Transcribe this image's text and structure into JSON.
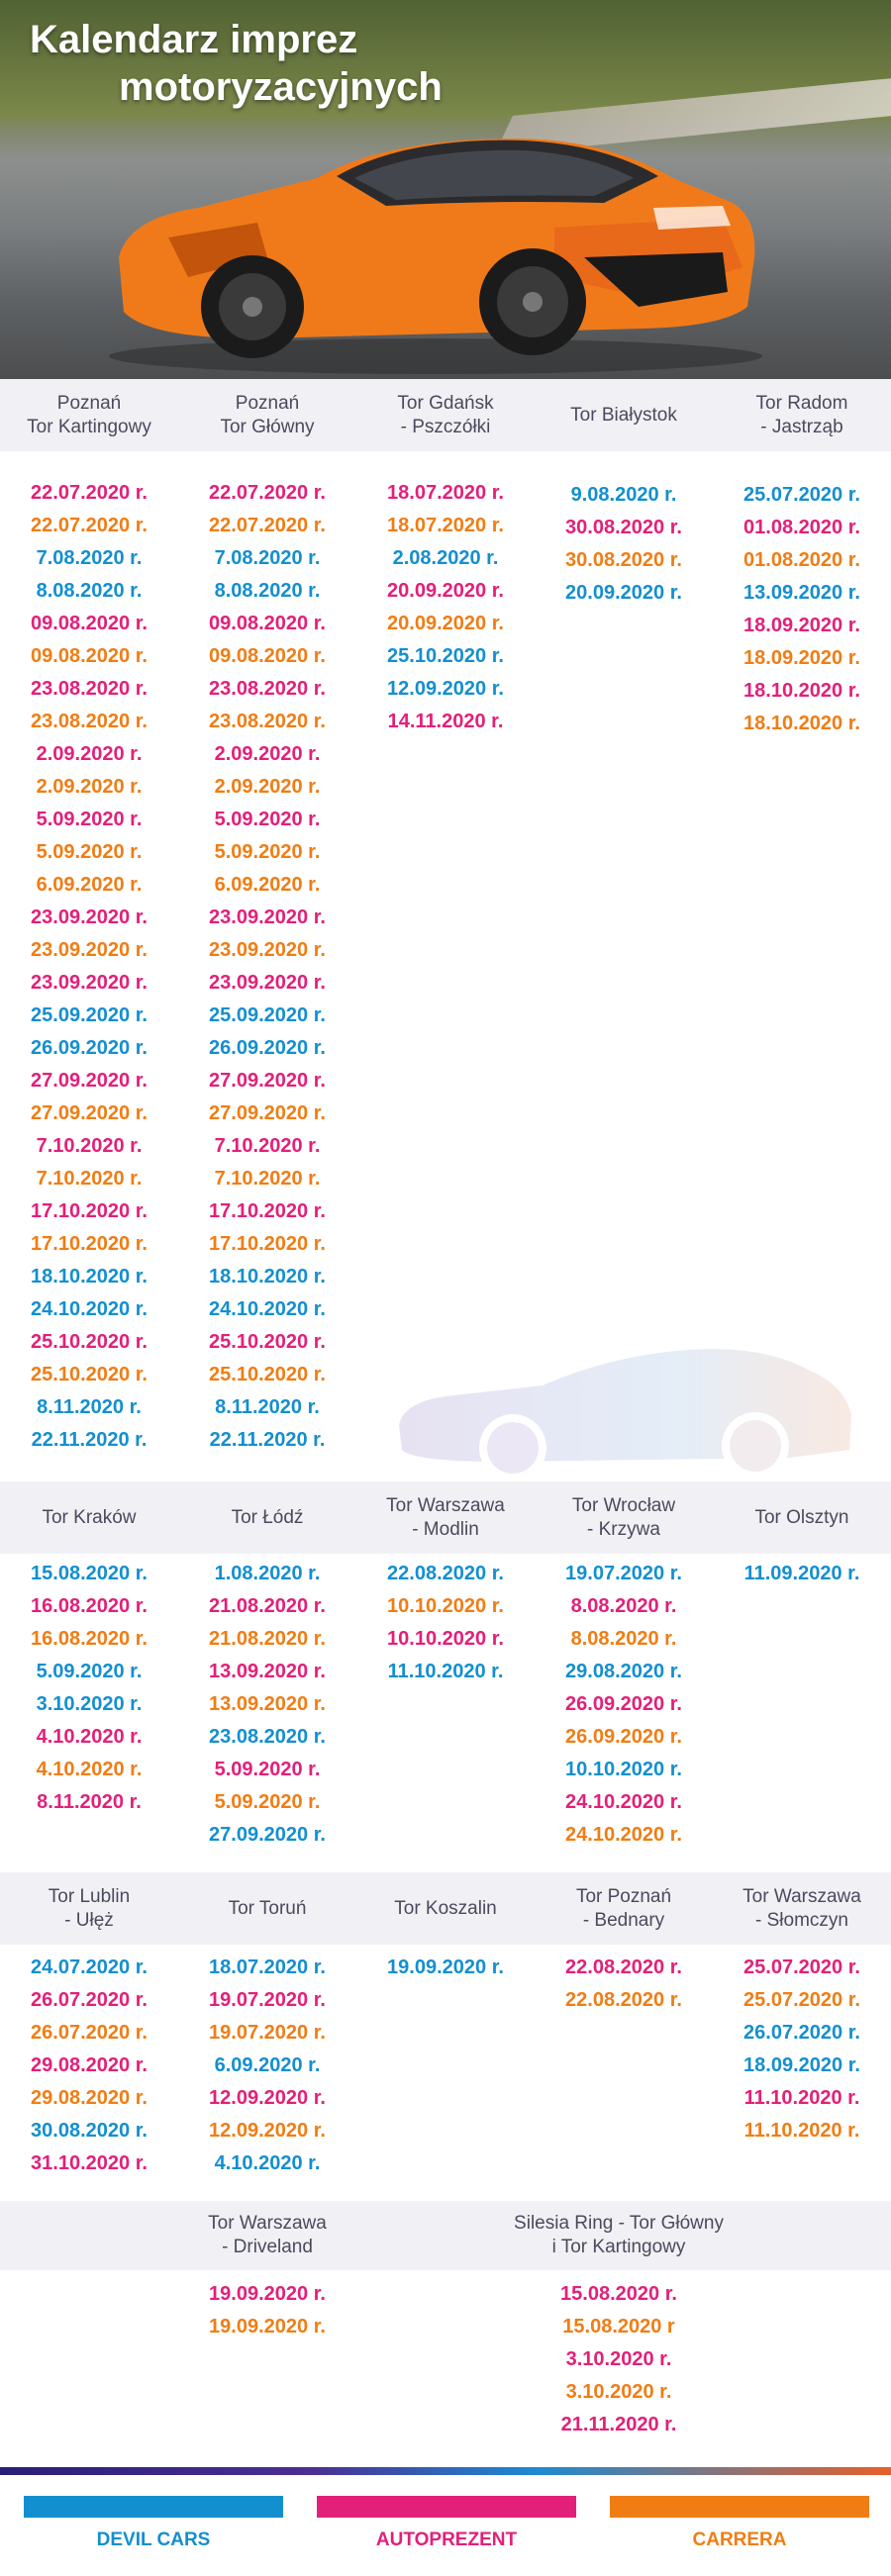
{
  "hero": {
    "title_line1": "Kalendarz imprez",
    "title_line2": "motoryzacyjnych"
  },
  "colors": {
    "devil": "#138fd0",
    "autoprezent": "#e2207a",
    "carrera": "#f07d14",
    "header_bg": "#f1f0f4",
    "header_text": "#4a4a5e"
  },
  "sections": [
    {
      "columns": [
        {
          "header": "Poznań\nTor Kartingowy",
          "dates": [
            {
              "t": "22.07.2020 r.",
              "c": "p"
            },
            {
              "t": "22.07.2020 r.",
              "c": "o"
            },
            {
              "t": "7.08.2020 r.",
              "c": "b"
            },
            {
              "t": "8.08.2020 r.",
              "c": "b"
            },
            {
              "t": "09.08.2020 r.",
              "c": "p"
            },
            {
              "t": "09.08.2020 r.",
              "c": "o"
            },
            {
              "t": "23.08.2020 r.",
              "c": "p"
            },
            {
              "t": "23.08.2020 r.",
              "c": "o"
            },
            {
              "t": "2.09.2020 r.",
              "c": "p"
            },
            {
              "t": "2.09.2020 r.",
              "c": "o"
            },
            {
              "t": "5.09.2020 r.",
              "c": "p"
            },
            {
              "t": "5.09.2020 r.",
              "c": "o"
            },
            {
              "t": "6.09.2020 r.",
              "c": "o"
            },
            {
              "t": "23.09.2020 r.",
              "c": "p"
            },
            {
              "t": "23.09.2020 r.",
              "c": "o"
            },
            {
              "t": "23.09.2020 r.",
              "c": "p"
            },
            {
              "t": "25.09.2020 r.",
              "c": "b"
            },
            {
              "t": "26.09.2020 r.",
              "c": "b"
            },
            {
              "t": "27.09.2020 r.",
              "c": "p"
            },
            {
              "t": "27.09.2020 r.",
              "c": "o"
            },
            {
              "t": "7.10.2020 r.",
              "c": "p"
            },
            {
              "t": "7.10.2020 r.",
              "c": "o"
            },
            {
              "t": "17.10.2020 r.",
              "c": "p"
            },
            {
              "t": "17.10.2020 r.",
              "c": "o"
            },
            {
              "t": "18.10.2020 r.",
              "c": "b"
            },
            {
              "t": "24.10.2020 r.",
              "c": "b"
            },
            {
              "t": "25.10.2020 r.",
              "c": "p"
            },
            {
              "t": "25.10.2020 r.",
              "c": "o"
            },
            {
              "t": "8.11.2020 r.",
              "c": "b"
            },
            {
              "t": "22.11.2020 r.",
              "c": "b"
            }
          ]
        },
        {
          "header": "Poznań\nTor Główny",
          "dates": [
            {
              "t": "22.07.2020 r.",
              "c": "p"
            },
            {
              "t": "22.07.2020 r.",
              "c": "o"
            },
            {
              "t": "7.08.2020 r.",
              "c": "b"
            },
            {
              "t": "8.08.2020 r.",
              "c": "b"
            },
            {
              "t": "09.08.2020 r.",
              "c": "p"
            },
            {
              "t": "09.08.2020 r.",
              "c": "o"
            },
            {
              "t": "23.08.2020 r.",
              "c": "p"
            },
            {
              "t": "23.08.2020 r.",
              "c": "o"
            },
            {
              "t": "2.09.2020 r.",
              "c": "p"
            },
            {
              "t": "2.09.2020 r.",
              "c": "o"
            },
            {
              "t": "5.09.2020 r.",
              "c": "p"
            },
            {
              "t": "5.09.2020 r.",
              "c": "o"
            },
            {
              "t": "6.09.2020 r.",
              "c": "o"
            },
            {
              "t": "23.09.2020 r.",
              "c": "p"
            },
            {
              "t": "23.09.2020 r.",
              "c": "o"
            },
            {
              "t": "23.09.2020 r.",
              "c": "p"
            },
            {
              "t": "25.09.2020 r.",
              "c": "b"
            },
            {
              "t": "26.09.2020 r.",
              "c": "b"
            },
            {
              "t": "27.09.2020 r.",
              "c": "p"
            },
            {
              "t": "27.09.2020 r.",
              "c": "o"
            },
            {
              "t": "7.10.2020 r.",
              "c": "p"
            },
            {
              "t": "7.10.2020 r.",
              "c": "o"
            },
            {
              "t": "17.10.2020 r.",
              "c": "p"
            },
            {
              "t": "17.10.2020 r.",
              "c": "o"
            },
            {
              "t": "18.10.2020 r.",
              "c": "b"
            },
            {
              "t": "24.10.2020 r.",
              "c": "b"
            },
            {
              "t": "25.10.2020 r.",
              "c": "p"
            },
            {
              "t": "25.10.2020 r.",
              "c": "o"
            },
            {
              "t": "8.11.2020 r.",
              "c": "b"
            },
            {
              "t": "22.11.2020 r.",
              "c": "b"
            }
          ]
        },
        {
          "header": "Tor Gdańsk\n- Pszczółki",
          "dates": [
            {
              "t": "18.07.2020 r.",
              "c": "p"
            },
            {
              "t": "18.07.2020 r.",
              "c": "o"
            },
            {
              "t": "2.08.2020 r.",
              "c": "b"
            },
            {
              "t": "20.09.2020 r.",
              "c": "p"
            },
            {
              "t": "20.09.2020 r.",
              "c": "o"
            },
            {
              "t": "25.10.2020 r.",
              "c": "b"
            },
            {
              "t": "12.09.2020 r.",
              "c": "b"
            },
            {
              "t": "14.11.2020 r.",
              "c": "p"
            }
          ]
        },
        {
          "header": "Tor Białystok",
          "dates": [
            {
              "t": "9.08.2020 r.",
              "c": "b"
            },
            {
              "t": "30.08.2020 r.",
              "c": "p"
            },
            {
              "t": "30.08.2020 r.",
              "c": "o"
            },
            {
              "t": "20.09.2020 r.",
              "c": "b"
            }
          ]
        },
        {
          "header": "Tor Radom\n- Jastrząb",
          "dates": [
            {
              "t": "25.07.2020 r.",
              "c": "b"
            },
            {
              "t": "01.08.2020 r.",
              "c": "p"
            },
            {
              "t": "01.08.2020 r.",
              "c": "o"
            },
            {
              "t": "13.09.2020 r.",
              "c": "b"
            },
            {
              "t": "18.09.2020 r.",
              "c": "p"
            },
            {
              "t": "18.09.2020 r.",
              "c": "o"
            },
            {
              "t": "18.10.2020 r.",
              "c": "p"
            },
            {
              "t": "18.10.2020 r.",
              "c": "o"
            }
          ]
        }
      ]
    },
    {
      "columns": [
        {
          "header": "Tor Kraków",
          "dates": [
            {
              "t": "15.08.2020 r.",
              "c": "b"
            },
            {
              "t": "16.08.2020 r.",
              "c": "p"
            },
            {
              "t": "16.08.2020 r.",
              "c": "o"
            },
            {
              "t": "5.09.2020 r.",
              "c": "b"
            },
            {
              "t": "3.10.2020 r.",
              "c": "b"
            },
            {
              "t": "4.10.2020 r.",
              "c": "p"
            },
            {
              "t": "4.10.2020 r.",
              "c": "o"
            },
            {
              "t": "8.11.2020 r.",
              "c": "p"
            }
          ]
        },
        {
          "header": "Tor Łódź",
          "dates": [
            {
              "t": "1.08.2020 r.",
              "c": "b"
            },
            {
              "t": "21.08.2020 r.",
              "c": "p"
            },
            {
              "t": "21.08.2020 r.",
              "c": "o"
            },
            {
              "t": "13.09.2020 r.",
              "c": "p"
            },
            {
              "t": "13.09.2020 r.",
              "c": "o"
            },
            {
              "t": "23.08.2020 r.",
              "c": "b"
            },
            {
              "t": "5.09.2020 r.",
              "c": "p"
            },
            {
              "t": "5.09.2020 r.",
              "c": "o"
            },
            {
              "t": "27.09.2020 r.",
              "c": "b"
            }
          ]
        },
        {
          "header": "Tor Warszawa\n- Modlin",
          "dates": [
            {
              "t": "22.08.2020 r.",
              "c": "b"
            },
            {
              "t": "10.10.2020 r.",
              "c": "o"
            },
            {
              "t": "10.10.2020 r.",
              "c": "p"
            },
            {
              "t": "11.10.2020 r.",
              "c": "b"
            }
          ]
        },
        {
          "header": "Tor Wrocław\n- Krzywa",
          "dates": [
            {
              "t": "19.07.2020 r.",
              "c": "b"
            },
            {
              "t": "8.08.2020 r.",
              "c": "p"
            },
            {
              "t": "8.08.2020 r.",
              "c": "o"
            },
            {
              "t": "29.08.2020 r.",
              "c": "b"
            },
            {
              "t": "26.09.2020 r.",
              "c": "p"
            },
            {
              "t": "26.09.2020 r.",
              "c": "o"
            },
            {
              "t": "10.10.2020 r.",
              "c": "b"
            },
            {
              "t": "24.10.2020 r.",
              "c": "p"
            },
            {
              "t": "24.10.2020 r.",
              "c": "o"
            }
          ]
        },
        {
          "header": "Tor Olsztyn",
          "dates": [
            {
              "t": "11.09.2020 r.",
              "c": "b"
            }
          ]
        }
      ]
    },
    {
      "columns": [
        {
          "header": "Tor Lublin\n- Ułęż",
          "dates": [
            {
              "t": "24.07.2020 r.",
              "c": "b"
            },
            {
              "t": "26.07.2020 r.",
              "c": "p"
            },
            {
              "t": "26.07.2020 r.",
              "c": "o"
            },
            {
              "t": "29.08.2020 r.",
              "c": "p"
            },
            {
              "t": "29.08.2020 r.",
              "c": "o"
            },
            {
              "t": "30.08.2020 r.",
              "c": "b"
            },
            {
              "t": "31.10.2020 r.",
              "c": "p"
            }
          ]
        },
        {
          "header": "Tor Toruń",
          "dates": [
            {
              "t": "18.07.2020 r.",
              "c": "b"
            },
            {
              "t": "19.07.2020 r.",
              "c": "p"
            },
            {
              "t": "19.07.2020 r.",
              "c": "o"
            },
            {
              "t": "6.09.2020 r.",
              "c": "b"
            },
            {
              "t": "12.09.2020 r.",
              "c": "p"
            },
            {
              "t": "12.09.2020 r.",
              "c": "o"
            },
            {
              "t": "4.10.2020 r.",
              "c": "b"
            }
          ]
        },
        {
          "header": "Tor Koszalin",
          "dates": [
            {
              "t": "19.09.2020 r.",
              "c": "b"
            }
          ]
        },
        {
          "header": "Tor Poznań\n- Bednary",
          "dates": [
            {
              "t": "22.08.2020 r.",
              "c": "p"
            },
            {
              "t": "22.08.2020 r.",
              "c": "o"
            }
          ]
        },
        {
          "header": "Tor Warszawa\n- Słomczyn",
          "dates": [
            {
              "t": "25.07.2020 r.",
              "c": "p"
            },
            {
              "t": "25.07.2020 r.",
              "c": "o"
            },
            {
              "t": "26.07.2020 r.",
              "c": "b"
            },
            {
              "t": "18.09.2020 r.",
              "c": "b"
            },
            {
              "t": "11.10.2020 r.",
              "c": "p"
            },
            {
              "t": "11.10.2020 r.",
              "c": "o"
            }
          ]
        }
      ]
    },
    {
      "columns": [
        {
          "header": "Tor Warszawa\n- Driveland",
          "dates": [
            {
              "t": "19.09.2020 r.",
              "c": "p"
            },
            {
              "t": "19.09.2020 r.",
              "c": "o"
            }
          ]
        },
        {
          "header": "Silesia Ring - Tor Główny\ni Tor Kartingowy",
          "dates": [
            {
              "t": "15.08.2020 r.",
              "c": "p"
            },
            {
              "t": "15.08.2020 r",
              "c": "o"
            },
            {
              "t": "3.10.2020 r.",
              "c": "p"
            },
            {
              "t": "3.10.2020 r.",
              "c": "o"
            },
            {
              "t": "21.11.2020 r.",
              "c": "p"
            }
          ]
        }
      ]
    }
  ],
  "legend": [
    {
      "label": "DEVIL CARS",
      "color": "#138fd0"
    },
    {
      "label": "AUTOPREZENT",
      "color": "#e2207a"
    },
    {
      "label": "CARRERA",
      "color": "#f07d14"
    }
  ]
}
